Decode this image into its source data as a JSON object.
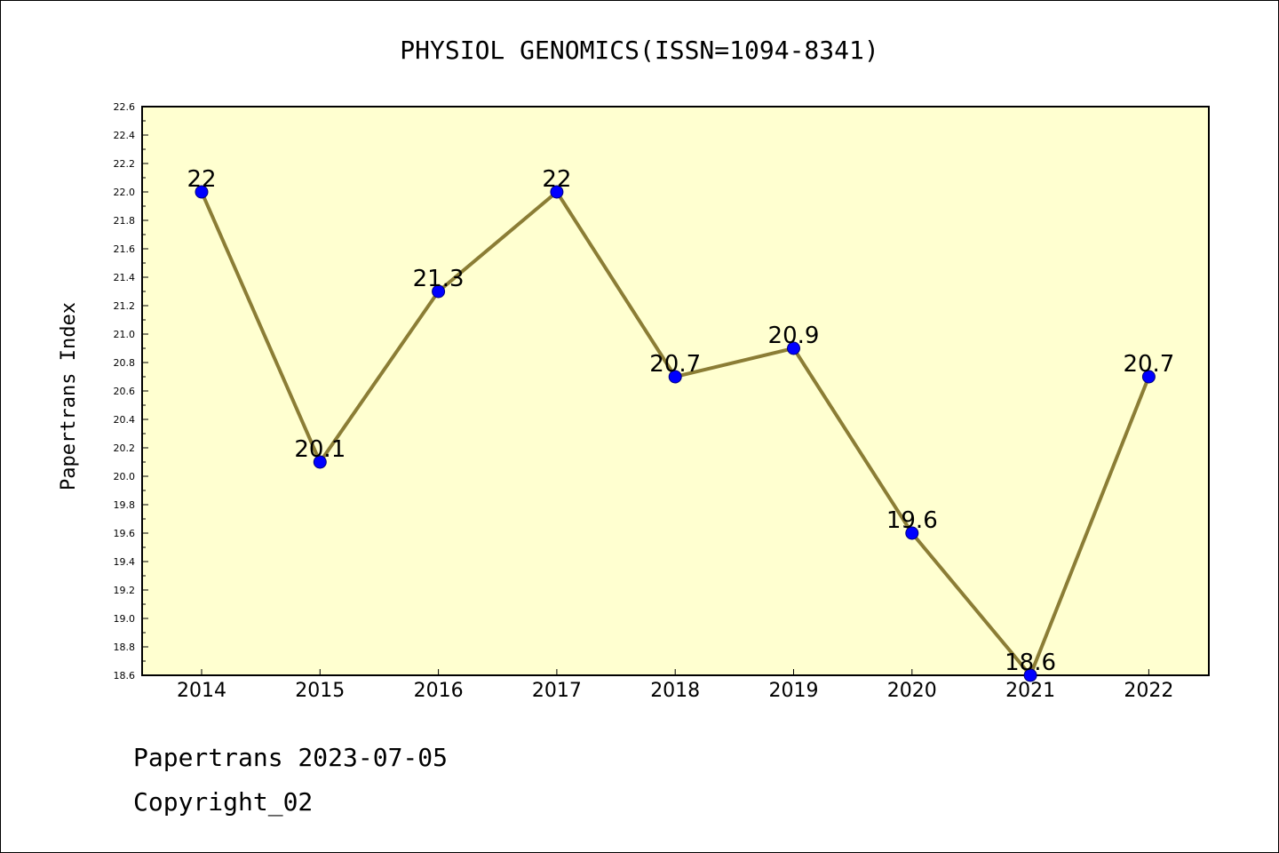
{
  "chart_data": {
    "type": "line",
    "title": "PHYSIOL GENOMICS(ISSN=1094-8341)",
    "xlabel": "",
    "ylabel": "Papertrans Index",
    "categories": [
      "2014",
      "2015",
      "2016",
      "2017",
      "2018",
      "2019",
      "2020",
      "2021",
      "2022"
    ],
    "values": [
      22,
      20.1,
      21.3,
      22,
      20.7,
      20.9,
      19.6,
      18.6,
      20.7
    ],
    "data_labels": [
      "22",
      "20.1",
      "21.3",
      "22",
      "20.7",
      "20.9",
      "19.6",
      "18.6",
      "20.7"
    ],
    "ylim": [
      18.6,
      22.6
    ],
    "yticks": [
      "18.6",
      "18.8",
      "19.0",
      "19.2",
      "19.4",
      "19.6",
      "19.8",
      "20.0",
      "20.2",
      "20.4",
      "20.6",
      "20.8",
      "21.0",
      "21.2",
      "21.4",
      "21.6",
      "21.8",
      "22.0",
      "22.2",
      "22.4",
      "22.6"
    ],
    "grid": false,
    "colors": {
      "plot_background": "#ffffd0",
      "line": "#8b7d35",
      "marker": "#0000ff"
    }
  },
  "footer": {
    "line1": "Papertrans 2023-07-05",
    "line2": "Copyright_02"
  }
}
